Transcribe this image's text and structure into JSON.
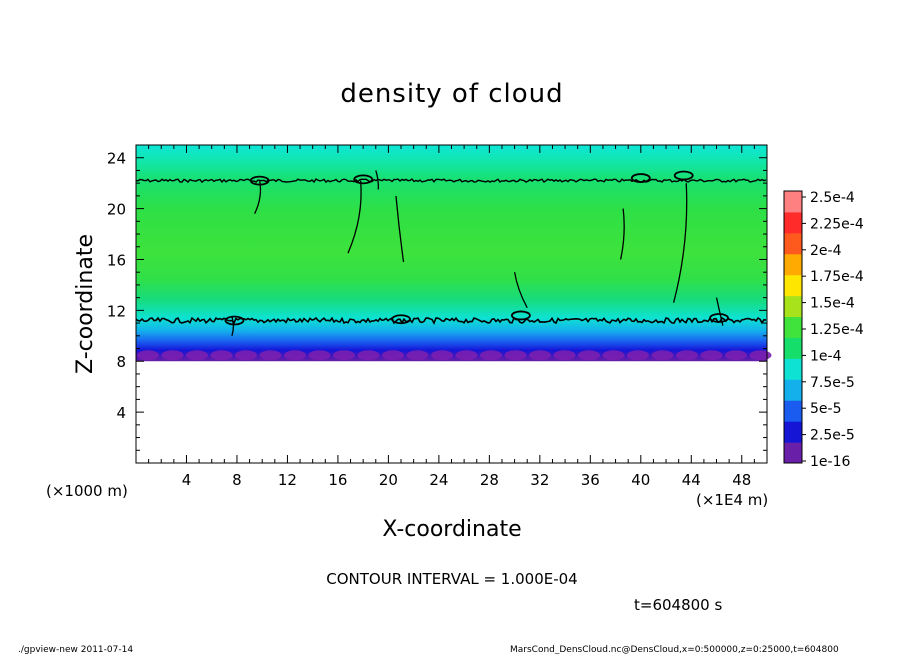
{
  "chart_data": {
    "type": "heatmap",
    "title": "density of cloud",
    "xlabel": "X-coordinate",
    "ylabel": "Z-coordinate",
    "x_unit_note": "(×1E4 m)",
    "y_unit_note": "(×1000 m)",
    "xlim": [
      0,
      50
    ],
    "ylim": [
      0,
      25
    ],
    "x_ticks": [
      4,
      8,
      12,
      16,
      20,
      24,
      28,
      32,
      36,
      40,
      44,
      48
    ],
    "y_ticks": [
      4,
      8,
      12,
      16,
      20,
      24
    ],
    "cloud_base_z": 8,
    "cloud_top_z": 25,
    "contour_lower_z": 11.2,
    "contour_upper_z": 22.2,
    "colorbar": {
      "labels": [
        "1e-16",
        "2.5e-5",
        "5e-5",
        "7.5e-5",
        "1e-4",
        "1.25e-4",
        "1.5e-4",
        "1.75e-4",
        "2e-4",
        "2.25e-4",
        "2.5e-4"
      ],
      "colors": [
        "#6a1fa8",
        "#1515d6",
        "#1a5cf0",
        "#14b0ec",
        "#0ee2d2",
        "#16de6a",
        "#40e23c",
        "#a8e21a",
        "#ffe600",
        "#ffaa00",
        "#ff5a1e",
        "#ff2a2a",
        "#ff8080"
      ]
    },
    "contour_interval_text": "CONTOUR INTERVAL = 1.000E-04",
    "time_text": "t=604800 s"
  },
  "footer": {
    "left": "./gpview-new   2011-07-14",
    "right": "MarsCond_DensCloud.nc@DensCloud,x=0:500000,z=0:25000,t=604800"
  }
}
